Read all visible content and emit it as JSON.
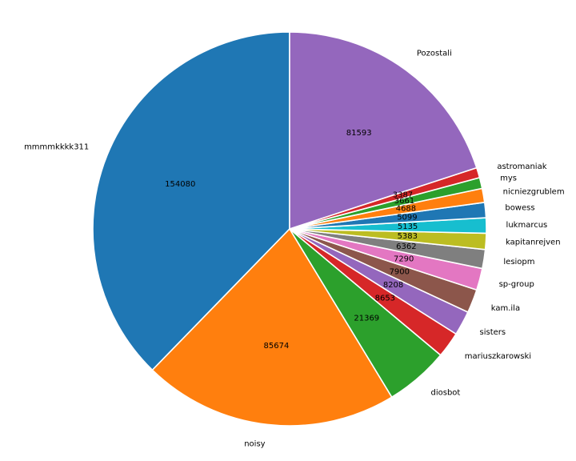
{
  "chart_data": {
    "type": "pie",
    "title": "",
    "start_angle_deg": 90,
    "direction": "counterclockwise",
    "labels": [
      "mmmmkkkk311",
      "noisy",
      "diosbot",
      "mariuszkarowski",
      "sisters",
      "kam.ila",
      "sp-group",
      "lesiopm",
      "kapitanrejven",
      "lukmarcus",
      "bowess",
      "nicniezgrublem",
      "mys",
      "astromaniak",
      "Pozostali"
    ],
    "values": [
      154080,
      85674,
      21369,
      8653,
      8208,
      7900,
      7290,
      6362,
      5383,
      5135,
      5099,
      4688,
      3661,
      3387,
      81593
    ],
    "value_labels": [
      "154080",
      "85674",
      "21369",
      "8653",
      "8208",
      "7900",
      "7290",
      "6362",
      "5383",
      "5135",
      "5099",
      "4688",
      "3661",
      "3387",
      "81593"
    ],
    "colors": [
      "#1f77b4",
      "#ff7f0e",
      "#2ca02c",
      "#d62728",
      "#9467bd",
      "#8c564b",
      "#e377c2",
      "#7f7f7f",
      "#bcbd22",
      "#17becf",
      "#1f77b4",
      "#ff7f0e",
      "#2ca02c",
      "#d62728",
      "#9467bd"
    ],
    "legend": "none"
  }
}
